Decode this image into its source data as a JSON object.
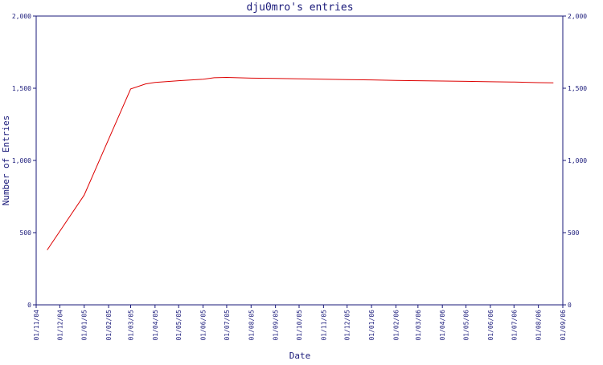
{
  "chart_data": {
    "type": "line",
    "title": "dju0mro's entries",
    "xlabel": "Date",
    "ylabel": "Number of Entries",
    "ylim": [
      0,
      2000
    ],
    "y_ticks": [
      0,
      500,
      1000,
      1500,
      2000
    ],
    "y_tick_labels": [
      "0",
      "500",
      "1,000",
      "1,500",
      "2,000"
    ],
    "x_ticks": [
      "01/11/04",
      "01/12/04",
      "01/01/05",
      "01/02/05",
      "01/03/05",
      "01/04/05",
      "01/05/05",
      "01/06/05",
      "01/07/05",
      "01/08/05",
      "01/09/05",
      "01/10/05",
      "01/11/05",
      "01/12/05",
      "01/01/06",
      "01/02/06",
      "01/03/06",
      "01/04/06",
      "01/05/06",
      "01/06/06",
      "01/07/06",
      "01/08/06",
      "01/09/06"
    ],
    "grid": false,
    "colors": {
      "line": "#dd0000",
      "axis": "#1a1a7a",
      "background": "#ffffff"
    },
    "series": [
      {
        "x": [
          "2004-11-15",
          "2005-01-01",
          "2005-03-01",
          "2005-03-20",
          "2005-04-01",
          "2005-05-01",
          "2005-06-01",
          "2005-06-15",
          "2005-07-01",
          "2005-08-01",
          "2005-09-01",
          "2005-10-01",
          "2005-11-01",
          "2005-12-01",
          "2006-01-01",
          "2006-02-01",
          "2006-03-01",
          "2006-04-01",
          "2006-05-01",
          "2006-06-01",
          "2006-07-01",
          "2006-08-01",
          "2006-08-20"
        ],
        "values": [
          380,
          760,
          1495,
          1530,
          1540,
          1552,
          1562,
          1573,
          1575,
          1570,
          1568,
          1565,
          1563,
          1560,
          1558,
          1554,
          1552,
          1550,
          1548,
          1545,
          1543,
          1539,
          1537
        ]
      }
    ]
  }
}
